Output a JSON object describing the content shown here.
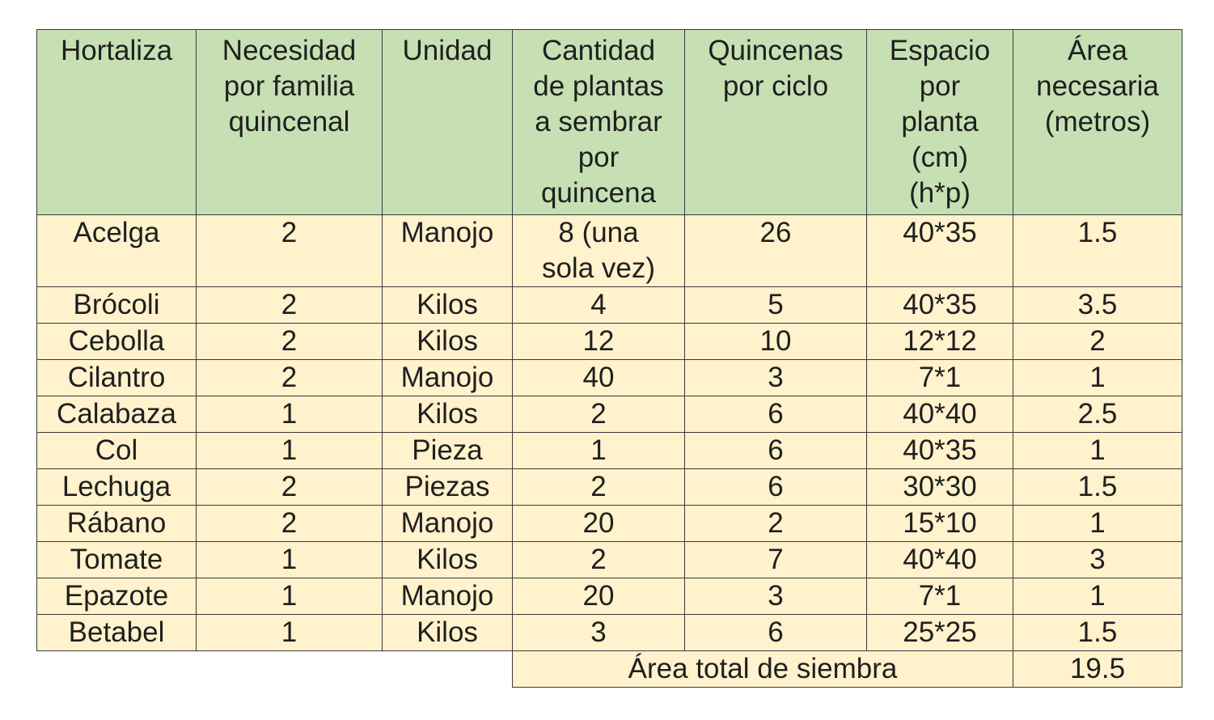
{
  "headers": [
    [
      "Hortaliza"
    ],
    [
      "Necesidad",
      "por familia",
      "quincenal"
    ],
    [
      "Unidad"
    ],
    [
      "Cantidad",
      "de plantas",
      "a sembrar",
      "por",
      "quincena"
    ],
    [
      "Quincenas",
      "por ciclo"
    ],
    [
      "Espacio",
      "por",
      "planta",
      "(cm)",
      "(h*p)"
    ],
    [
      "Área",
      "necesaria",
      "(metros)"
    ]
  ],
  "rows": [
    {
      "hortaliza": "Acelga",
      "necesidad": "2",
      "unidad": "Manojo",
      "cantidad": [
        "8 (una",
        "sola vez)"
      ],
      "quincenas": "26",
      "espacio": "40*35",
      "area": "1.5"
    },
    {
      "hortaliza": "Brócoli",
      "necesidad": "2",
      "unidad": "Kilos",
      "cantidad": [
        "4"
      ],
      "quincenas": "5",
      "espacio": "40*35",
      "area": "3.5"
    },
    {
      "hortaliza": "Cebolla",
      "necesidad": "2",
      "unidad": "Kilos",
      "cantidad": [
        "12"
      ],
      "quincenas": "10",
      "espacio": "12*12",
      "area": "2"
    },
    {
      "hortaliza": "Cilantro",
      "necesidad": "2",
      "unidad": "Manojo",
      "cantidad": [
        "40"
      ],
      "quincenas": "3",
      "espacio": "7*1",
      "area": "1"
    },
    {
      "hortaliza": "Calabaza",
      "necesidad": "1",
      "unidad": "Kilos",
      "cantidad": [
        "2"
      ],
      "quincenas": "6",
      "espacio": "40*40",
      "area": "2.5"
    },
    {
      "hortaliza": "Col",
      "necesidad": "1",
      "unidad": "Pieza",
      "cantidad": [
        "1"
      ],
      "quincenas": "6",
      "espacio": "40*35",
      "area": "1"
    },
    {
      "hortaliza": "Lechuga",
      "necesidad": "2",
      "unidad": "Piezas",
      "cantidad": [
        "2"
      ],
      "quincenas": "6",
      "espacio": "30*30",
      "area": "1.5"
    },
    {
      "hortaliza": "Rábano",
      "necesidad": "2",
      "unidad": "Manojo",
      "cantidad": [
        "20"
      ],
      "quincenas": "2",
      "espacio": "15*10",
      "area": "1"
    },
    {
      "hortaliza": "Tomate",
      "necesidad": "1",
      "unidad": "Kilos",
      "cantidad": [
        "2"
      ],
      "quincenas": "7",
      "espacio": "40*40",
      "area": "3"
    },
    {
      "hortaliza": "Epazote",
      "necesidad": "1",
      "unidad": "Manojo",
      "cantidad": [
        "20"
      ],
      "quincenas": "3",
      "espacio": "7*1",
      "area": "1"
    },
    {
      "hortaliza": "Betabel",
      "necesidad": "1",
      "unidad": "Kilos",
      "cantidad": [
        "3"
      ],
      "quincenas": "6",
      "espacio": "25*25",
      "area": "1.5"
    }
  ],
  "total": {
    "label": "Área total de siembra",
    "value": "19.5"
  },
  "colors": {
    "header_bg": "#c6e0b4",
    "body_bg": "#fff2cc",
    "border": "#3a3a3a"
  }
}
